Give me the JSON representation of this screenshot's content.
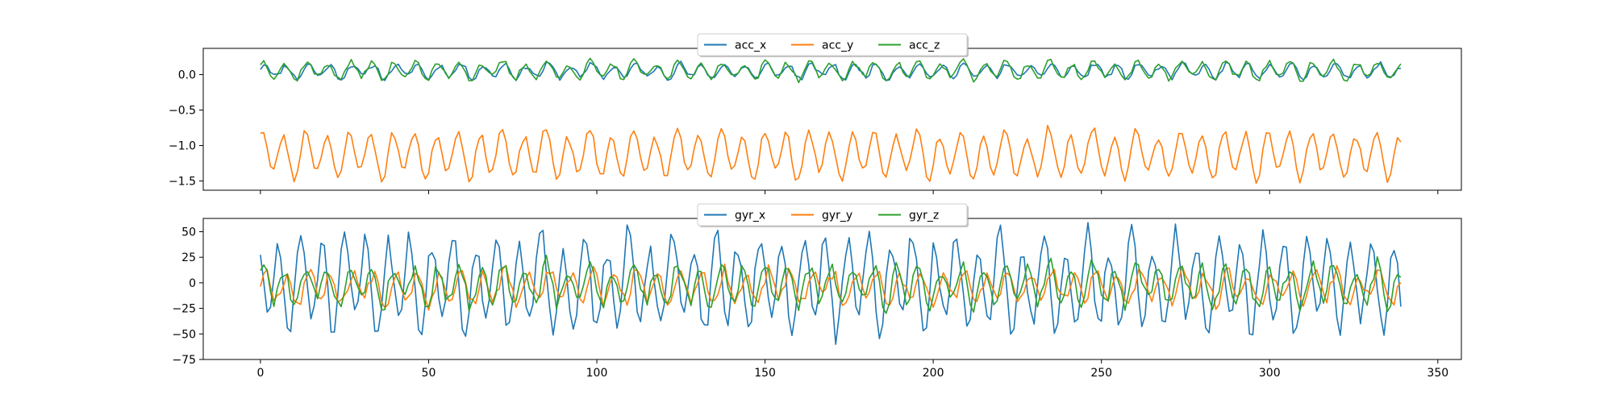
{
  "chart_data": [
    {
      "type": "line",
      "xlim": [
        -17,
        357
      ],
      "ylim": [
        -1.63,
        0.37
      ],
      "xticks": [
        0,
        50,
        100,
        150,
        200,
        250,
        300,
        350
      ],
      "xtick_labels": [],
      "yticks": [
        0.0,
        -0.5,
        -1.0,
        -1.5
      ],
      "ytick_labels": [
        "0.0",
        "−0.5",
        "−1.0",
        "−1.5"
      ],
      "legend": {
        "position": "upper center",
        "entries": [
          "acc_x",
          "acc_y",
          "acc_z"
        ]
      },
      "grid": false,
      "x_range": [
        0,
        339
      ],
      "series": [
        {
          "name": "acc_x",
          "color": "#1f77b4",
          "generator": "walk",
          "base": 0.05,
          "amp": 0.09,
          "period": 6.5,
          "phase": 0.4,
          "noise": 0.035,
          "seed": 11,
          "x_start": 0,
          "x_end": 339
        },
        {
          "name": "acc_y",
          "color": "#ff7f0e",
          "generator": "walk",
          "base": -1.12,
          "amp": 0.3,
          "period": 6.5,
          "phase": 1.2,
          "noise": 0.05,
          "seed": 23,
          "x_start": 0,
          "x_end": 339
        },
        {
          "name": "acc_z",
          "color": "#2ca02c",
          "generator": "walk",
          "base": 0.06,
          "amp": 0.11,
          "period": 6.5,
          "phase": 0.9,
          "noise": 0.04,
          "seed": 37,
          "x_start": 0,
          "x_end": 339
        }
      ]
    },
    {
      "type": "line",
      "xlim": [
        -17,
        357
      ],
      "ylim": [
        -75,
        63
      ],
      "xticks": [
        0,
        50,
        100,
        150,
        200,
        250,
        300,
        350
      ],
      "xtick_labels": [
        "0",
        "50",
        "100",
        "150",
        "200",
        "250",
        "300",
        "350"
      ],
      "yticks": [
        50,
        25,
        0,
        -25,
        -50,
        -75
      ],
      "ytick_labels": [
        "50",
        "25",
        "0",
        "−25",
        "−50",
        "−75"
      ],
      "legend": {
        "position": "upper center",
        "entries": [
          "gyr_x",
          "gyr_y",
          "gyr_z"
        ]
      },
      "grid": false,
      "x_range": [
        0,
        339
      ],
      "series": [
        {
          "name": "gyr_x",
          "color": "#1f77b4",
          "generator": "walk",
          "base": 0,
          "amp": 42,
          "period": 6.5,
          "phase": 2.6,
          "noise": 9,
          "seed": 51,
          "x_start": 0,
          "x_end": 339
        },
        {
          "name": "gyr_y",
          "color": "#ff7f0e",
          "generator": "walk",
          "base": -4,
          "amp": 14,
          "period": 6.5,
          "phase": 0.2,
          "noise": 6,
          "seed": 67,
          "x_start": 0,
          "x_end": 339
        },
        {
          "name": "gyr_z",
          "color": "#2ca02c",
          "generator": "walk",
          "base": -2,
          "amp": 18,
          "period": 6.5,
          "phase": 1.0,
          "noise": 7,
          "seed": 79,
          "x_start": 0,
          "x_end": 339
        }
      ]
    }
  ]
}
